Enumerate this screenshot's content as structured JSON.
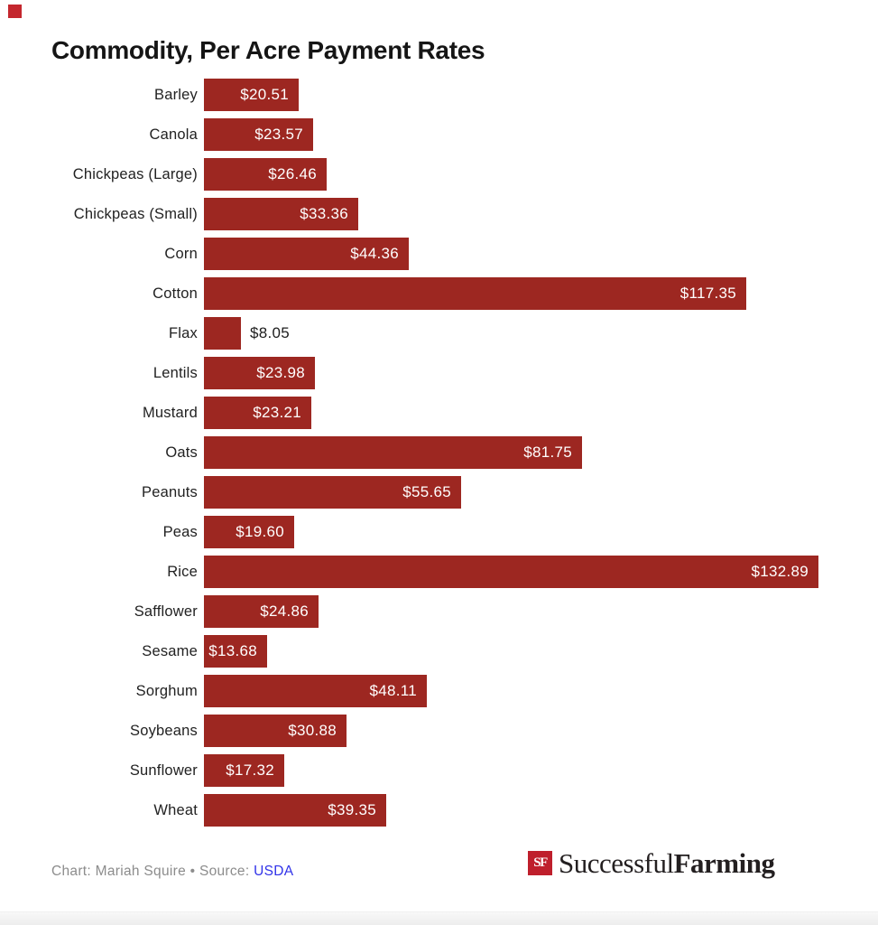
{
  "title": "Commodity, Per Acre Payment Rates",
  "colors": {
    "bar": "#9d2721",
    "corner_mark": "#c4272e",
    "value_inside": "#ffffff",
    "value_outside": "#1d1d1d",
    "footer_text": "#8c8c8c",
    "link": "#3032e8",
    "logo_badge": "#bf1f2c"
  },
  "chart_data": {
    "type": "bar",
    "orientation": "horizontal",
    "title": "Commodity, Per Acre Payment Rates",
    "xlabel": "",
    "ylabel": "",
    "xlim": [
      0,
      132.89
    ],
    "grid": false,
    "legend": "none",
    "categories": [
      "Barley",
      "Canola",
      "Chickpeas (Large)",
      "Chickpeas (Small)",
      "Corn",
      "Cotton",
      "Flax",
      "Lentils",
      "Mustard",
      "Oats",
      "Peanuts",
      "Peas",
      "Rice",
      "Safflower",
      "Sesame",
      "Sorghum",
      "Soybeans",
      "Sunflower",
      "Wheat"
    ],
    "values": [
      20.51,
      23.57,
      26.46,
      33.36,
      44.36,
      117.35,
      8.05,
      23.98,
      23.21,
      81.75,
      55.65,
      19.6,
      132.89,
      24.86,
      13.68,
      48.11,
      30.88,
      17.32,
      39.35
    ],
    "value_labels": [
      "$20.51",
      "$23.57",
      "$26.46",
      "$33.36",
      "$44.36",
      "$117.35",
      "$8.05",
      "$23.98",
      "$23.21",
      "$81.75",
      "$55.65",
      "$19.60",
      "$132.89",
      "$24.86",
      "$13.68",
      "$48.11",
      "$30.88",
      "$17.32",
      "$39.35"
    ]
  },
  "footer": {
    "credit": "Chart: Mariah Squire • Source:",
    "source_link": "USDA"
  },
  "logo": {
    "badge": "SF",
    "name_regular": "Successful",
    "name_bold": "Farming"
  }
}
